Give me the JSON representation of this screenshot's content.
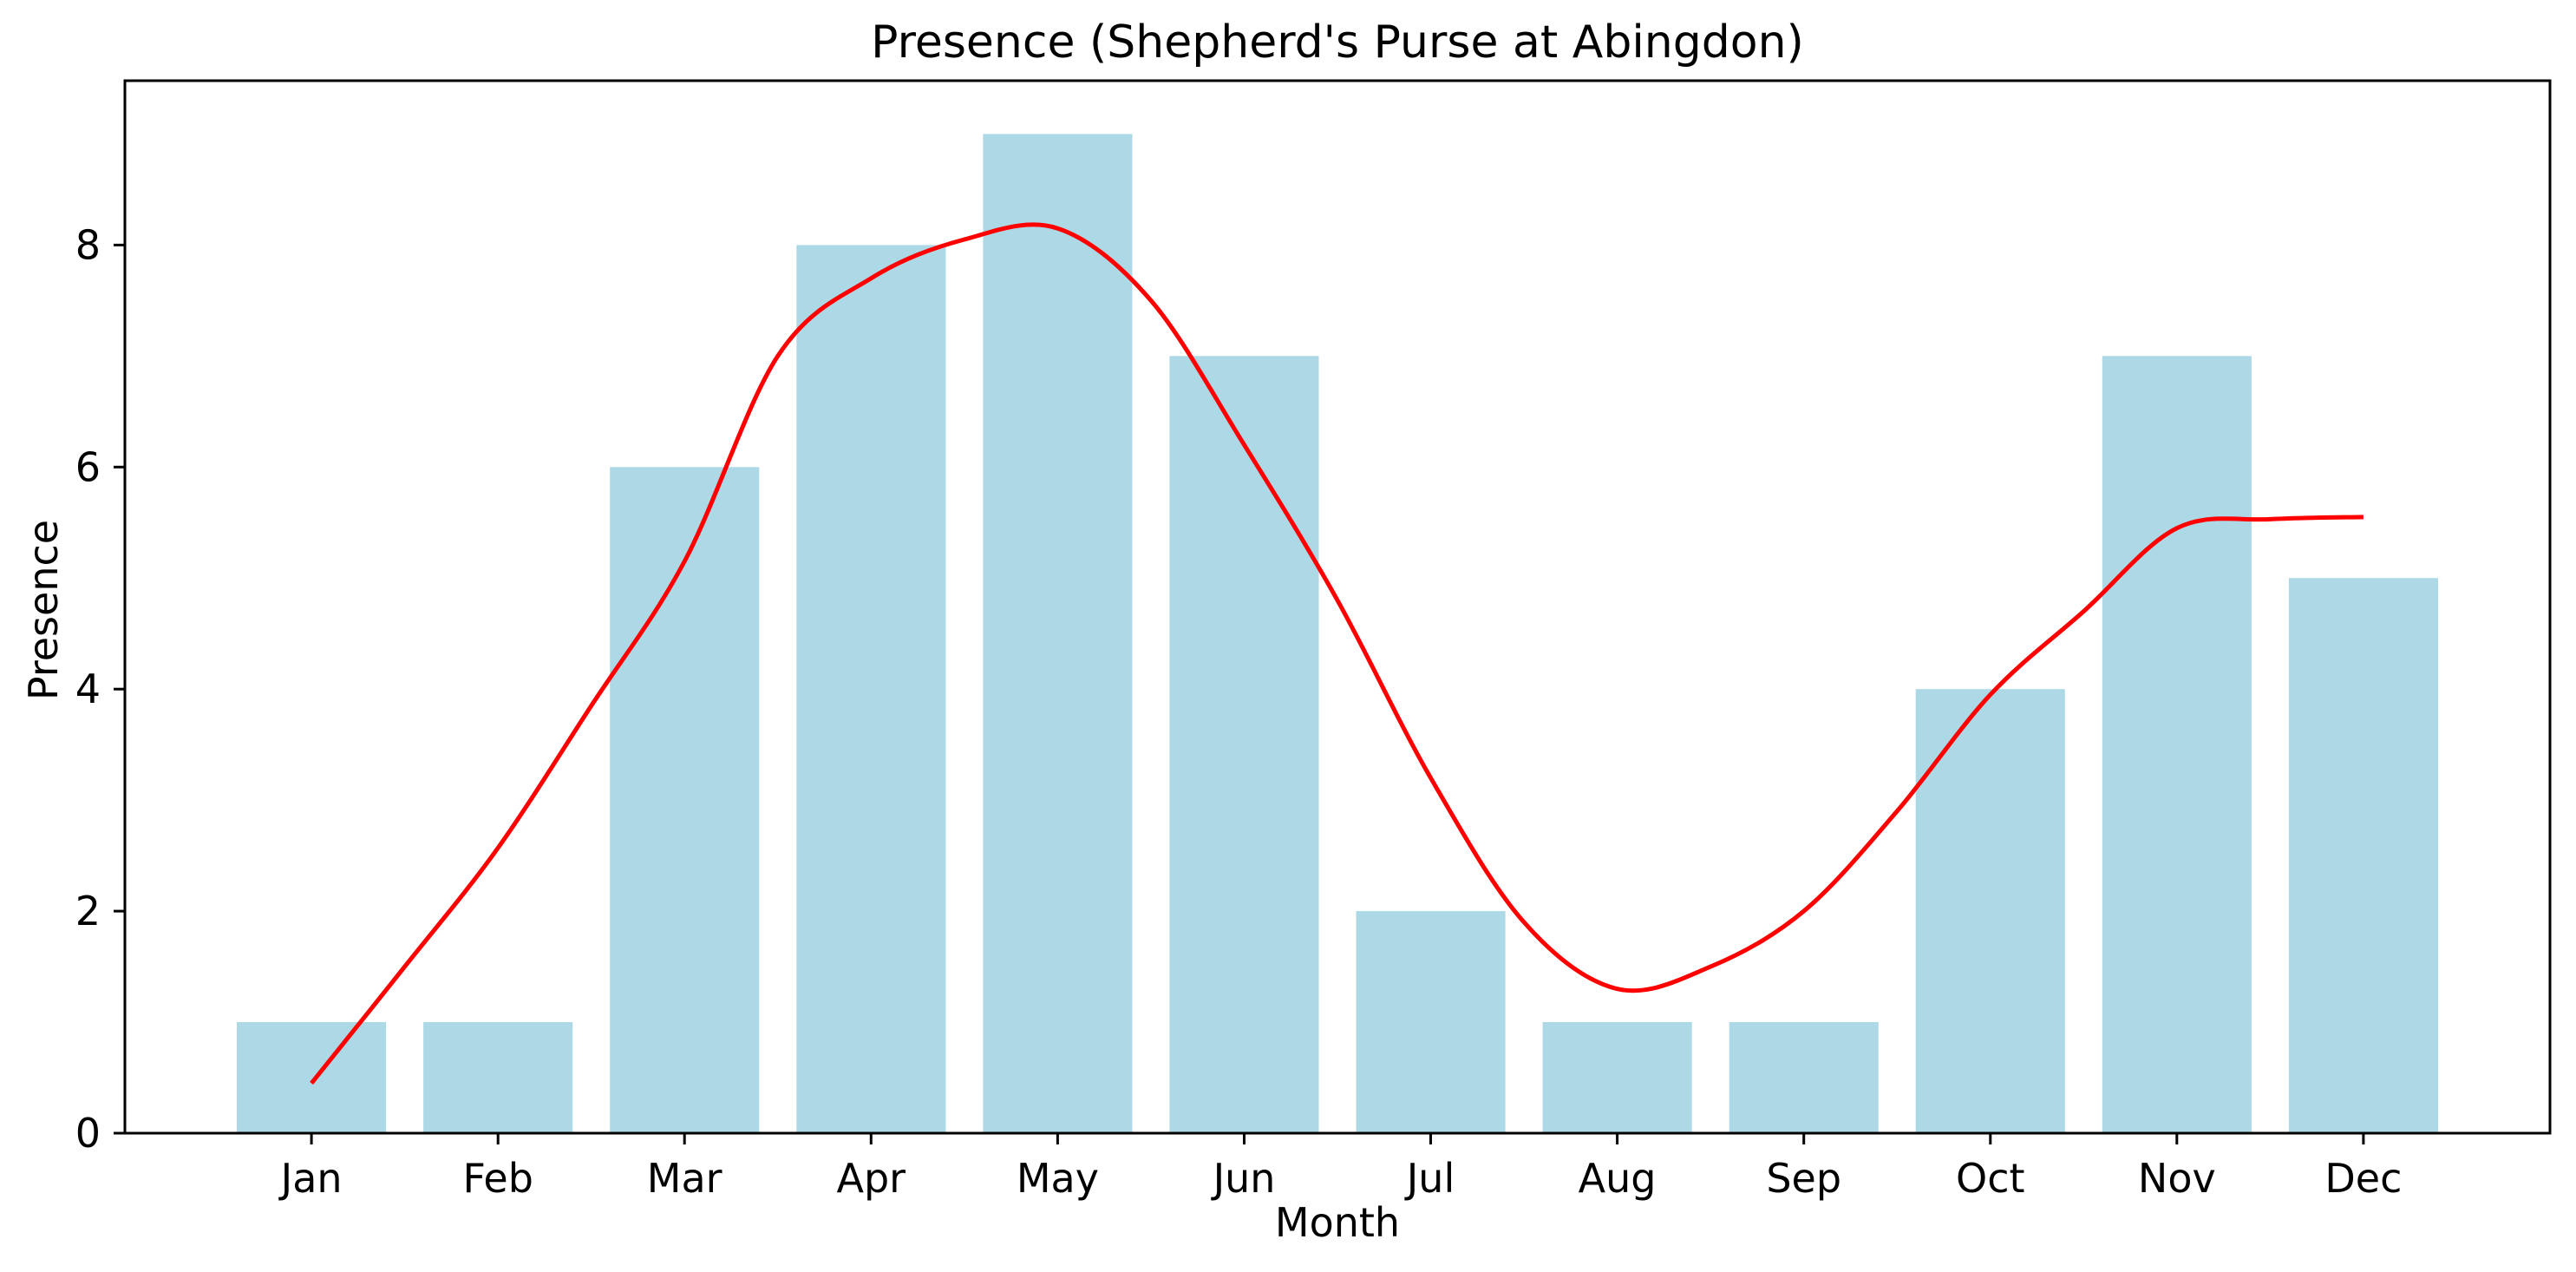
{
  "figure": {
    "background": "#FFFFFF",
    "text_color": "#000000",
    "spine_color": "#000000"
  },
  "chart_data": {
    "type": "bar",
    "title": "Presence (Shepherd's Purse at Abingdon)",
    "xlabel": "Month",
    "ylabel": "Presence",
    "categories": [
      "Jan",
      "Feb",
      "Mar",
      "Apr",
      "May",
      "Jun",
      "Jul",
      "Aug",
      "Sep",
      "Oct",
      "Nov",
      "Dec"
    ],
    "values": [
      1,
      1,
      6,
      8,
      9,
      7,
      2,
      1,
      1,
      4,
      7,
      5
    ],
    "bar_color": "#ADD8E6",
    "bar_width_fraction": 0.8,
    "yticks": [
      "0",
      "2",
      "4",
      "6",
      "8"
    ],
    "ytick_values": [
      0,
      2,
      4,
      6,
      8
    ],
    "ylim": [
      0,
      9.48
    ],
    "xlim": [
      0,
      13
    ],
    "grid": false,
    "legend": "none",
    "line_overlay": {
      "name": "smoothed-trend",
      "type": "line",
      "color": "#FF0000",
      "width": 5,
      "x": [
        1.0,
        1.5,
        2.0,
        2.5,
        3.0,
        3.5,
        4.0,
        4.5,
        5.0,
        5.5,
        6.0,
        6.5,
        7.0,
        7.5,
        8.0,
        8.5,
        9.0,
        9.5,
        10.0,
        10.5,
        11.0,
        11.5,
        12.0
      ],
      "values": [
        0.45,
        1.5,
        2.57,
        3.85,
        5.15,
        7.0,
        7.7,
        8.05,
        8.15,
        7.5,
        6.2,
        4.8,
        3.2,
        1.9,
        1.3,
        1.5,
        2.0,
        2.9,
        3.95,
        4.7,
        5.45,
        5.53,
        5.55
      ]
    }
  }
}
